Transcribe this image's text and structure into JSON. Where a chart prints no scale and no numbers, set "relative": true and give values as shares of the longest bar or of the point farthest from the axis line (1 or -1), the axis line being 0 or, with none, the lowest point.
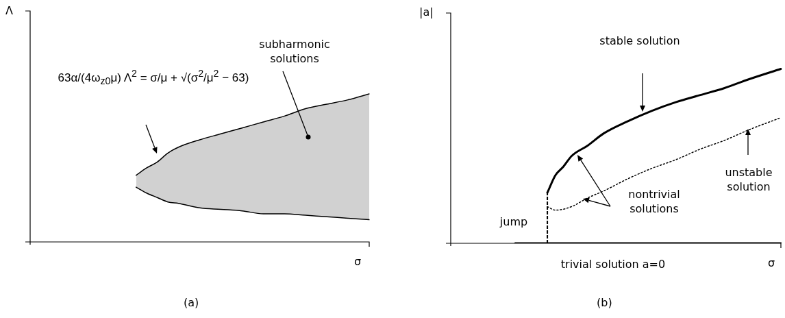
{
  "chart_data": [
    {
      "type": "line",
      "relative": true,
      "title": "(a)",
      "xlabel": "σ",
      "ylabel": "Λ",
      "categories": [
        null,
        null,
        null,
        null,
        null,
        null,
        null,
        null,
        null,
        null,
        null,
        null,
        null,
        null,
        null,
        null,
        null,
        null,
        null,
        null,
        null,
        null,
        null,
        null,
        null,
        null,
        null,
        null,
        null,
        null,
        null,
        null,
        null
      ],
      "series": [
        {
          "type": "area",
          "color": "#000000",
          "values": [
            null,
            null,
            null,
            null,
            null,
            null,
            null,
            null,
            null,
            null,
            0.45,
            0.5,
            0.54,
            0.6,
            0.64,
            null,
            0.69,
            null,
            0.73,
            null,
            0.77,
            null,
            0.81,
            null,
            0.85,
            null,
            0.9,
            null,
            0.93,
            null,
            0.96,
            null,
            1
          ]
        },
        {
          "color": "#000000",
          "values": [
            null,
            null,
            null,
            null,
            null,
            null,
            null,
            null,
            null,
            null,
            0.37,
            0.33,
            0.3,
            0.27,
            0.26,
            null,
            0.23,
            null,
            0.22,
            null,
            0.21,
            null,
            0.19,
            null,
            0.19,
            null,
            0.18,
            null,
            0.17,
            null,
            0.16,
            null,
            0.15
          ]
        }
      ],
      "annotations": [
        "63α/(4ω$_{z0}$μ) Λ$^{2}$ = σ/μ + √(σ$^{2}$/μ$^{2}$ − 63)",
        "subharmonic solutions"
      ]
    },
    {
      "type": "line",
      "relative": true,
      "title": "(b)",
      "xlabel": "σ",
      "ylabel": "|a|",
      "categories": [
        null,
        null,
        null,
        null,
        null,
        null,
        null,
        null,
        null,
        null,
        null,
        null,
        null,
        null,
        null,
        null,
        null,
        null,
        null,
        null,
        null,
        null,
        null,
        null,
        null,
        null,
        null,
        null,
        null,
        null,
        null,
        null,
        null,
        null,
        null,
        null,
        null,
        null,
        null,
        null,
        null,
        null
      ],
      "series": [
        {
          "color": "#000000",
          "values": [
            null,
            null,
            null,
            null,
            null,
            null,
            null,
            null,
            0,
            0,
            0,
            0,
            0,
            0,
            0,
            0,
            0,
            0,
            0,
            0,
            0,
            0,
            0,
            0,
            0,
            0,
            0,
            0,
            0,
            0,
            0,
            0,
            0,
            0,
            0,
            0,
            0,
            0,
            0,
            0,
            0,
            0
          ]
        },
        {
          "color": "#000000",
          "values": [
            null,
            null,
            null,
            null,
            null,
            null,
            null,
            null,
            null,
            null,
            null,
            null,
            0.29,
            0.39,
            0.44,
            0.5,
            null,
            0.56,
            null,
            0.63,
            null,
            null,
            0.7,
            null,
            null,
            0.76,
            null,
            null,
            0.81,
            null,
            null,
            0.85,
            null,
            null,
            0.89,
            null,
            null,
            0.94,
            null,
            null,
            null,
            1
          ]
        },
        {
          "color": "#000000",
          "line_style": "dotted",
          "values": [
            null,
            null,
            null,
            null,
            null,
            null,
            null,
            null,
            null,
            null,
            null,
            null,
            0.21,
            0.19,
            null,
            0.21,
            null,
            0.26,
            null,
            0.3,
            null,
            null,
            0.37,
            null,
            null,
            0.43,
            null,
            null,
            0.48,
            null,
            null,
            0.54,
            null,
            null,
            0.59,
            null,
            null,
            0.65,
            null,
            null,
            null,
            0.72
          ]
        }
      ],
      "annotations": [
        "stable solution",
        "unstable solution",
        "nontrivial solutions",
        "jump",
        "trivial solution a=0"
      ]
    }
  ]
}
